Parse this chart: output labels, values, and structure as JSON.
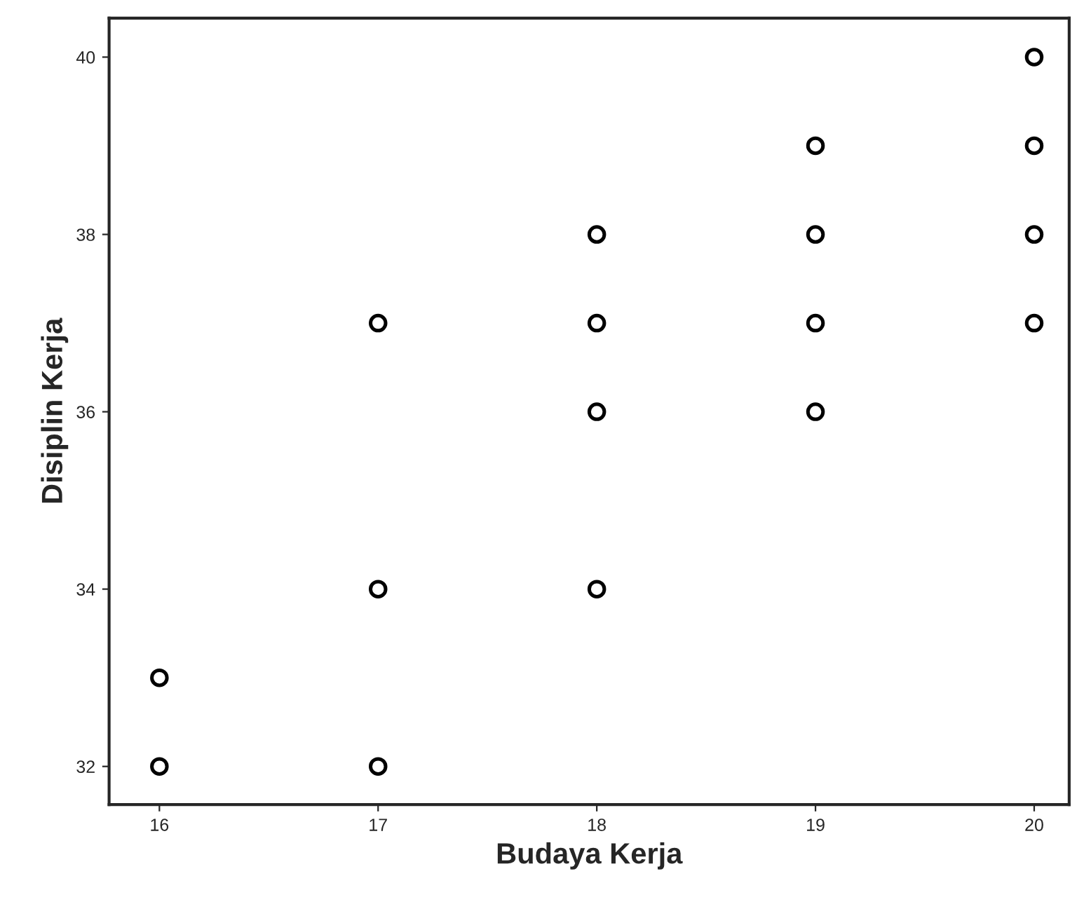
{
  "chart_data": {
    "type": "scatter",
    "xlabel": "Budaya Kerja",
    "ylabel": "Disiplin Kerja",
    "x": [
      16,
      16,
      17,
      17,
      17,
      18,
      18,
      18,
      18,
      19,
      19,
      19,
      19,
      20,
      20,
      20,
      20
    ],
    "values": [
      33,
      32,
      37,
      34,
      32,
      38,
      37,
      36,
      34,
      39,
      38,
      37,
      36,
      40,
      39,
      38,
      37
    ],
    "color": "#000000",
    "marker": "circle",
    "xlim": [
      15.77,
      20.16
    ],
    "xticks": [
      16,
      17,
      18,
      19,
      20
    ],
    "ylim": [
      31.57,
      40.44
    ],
    "yticks": [
      32,
      34,
      36,
      38,
      40
    ],
    "grid": false
  }
}
